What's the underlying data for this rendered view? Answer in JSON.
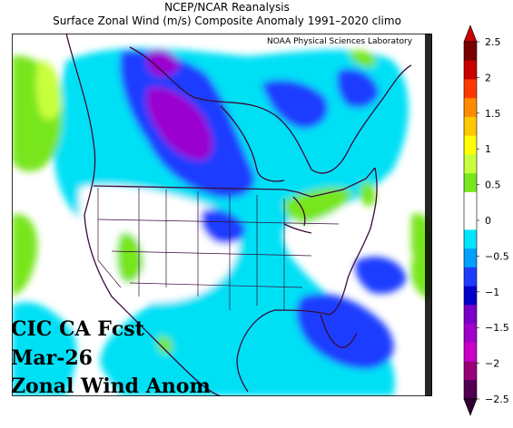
{
  "header": {
    "line1": "NCEP/NCAR Reanalysis",
    "line2": "Surface Zonal Wind (m/s) Composite Anomaly 1991–2020 climo"
  },
  "map": {
    "credit": "NOAA Physical Sciences Laboratory",
    "region": "North America",
    "variable": "surface zonal wind anomaly"
  },
  "overlay": {
    "line1": "CIC CA Fcst",
    "line2": "Mar-26",
    "line3": "Zonal Wind Anom"
  },
  "colorbar": {
    "ticks": [
      "2.5",
      "2",
      "1.5",
      "1",
      "0.5",
      "0",
      "−0.5",
      "−1",
      "−1.5",
      "−2",
      "−2.5"
    ],
    "colors": [
      "#7a0000",
      "#c80000",
      "#ff3a00",
      "#ff8c00",
      "#ffc800",
      "#ffff00",
      "#c8ff3c",
      "#78e61e",
      "#ffffff",
      "#ffffff",
      "#00e6ff",
      "#00a0ff",
      "#1e3cff",
      "#0000c8",
      "#7800c8",
      "#a000c8",
      "#c800c8",
      "#960078",
      "#500050"
    ],
    "top_arrow_color": "#c80000",
    "bottom_arrow_color": "#320032"
  }
}
